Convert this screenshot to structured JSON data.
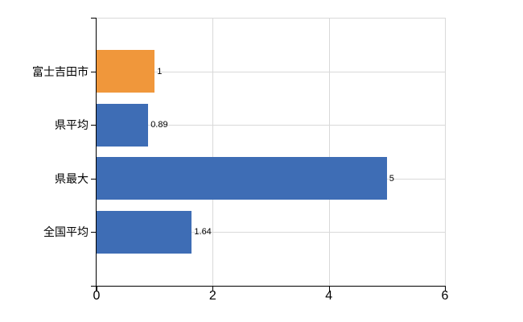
{
  "chart_data": {
    "type": "bar",
    "orientation": "horizontal",
    "title": "",
    "xlabel": "",
    "ylabel": "",
    "categories": [
      "富士吉田市",
      "県平均",
      "県最大",
      "全国平均"
    ],
    "values": [
      1,
      0.89,
      5,
      1.64
    ],
    "value_labels": [
      "1",
      "0.89",
      "5",
      "1.64"
    ],
    "bar_colors": [
      "#f0973b",
      "#3e6db5",
      "#3e6db5",
      "#3e6db5"
    ],
    "xlim": [
      0,
      6
    ],
    "x_ticks": [
      0,
      2,
      4,
      6
    ],
    "x_tick_labels": [
      "0",
      "2",
      "4",
      "6"
    ],
    "grid": true,
    "legend": false
  },
  "colors": {
    "highlight_bar": "#f0973b",
    "default_bar": "#3e6db5",
    "gridline": "#d9d9d9",
    "axis": "#000000",
    "text": "#000000",
    "background": "#ffffff"
  }
}
